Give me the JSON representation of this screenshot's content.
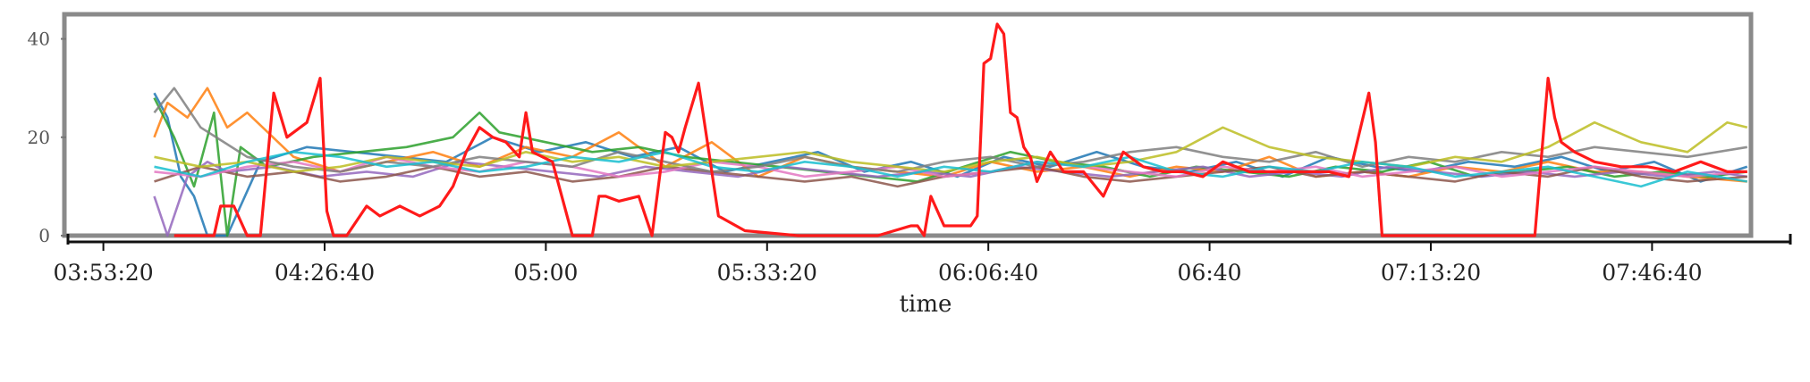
{
  "chart_data": {
    "type": "line",
    "title": "",
    "xlabel": "time",
    "ylabel": "",
    "x_ticks": [
      "03:53:20",
      "04:26:40",
      "05:00",
      "05:33:20",
      "06:06:40",
      "06:40",
      "07:13:20",
      "07:46:40"
    ],
    "y_ticks": [
      0,
      20,
      40
    ],
    "xlim": [
      "03:48:00",
      "08:07:30"
    ],
    "ylim": [
      0,
      45
    ],
    "grid": false,
    "legend": "none",
    "series_colors": [
      "#ff1a1a",
      "#1f77b4",
      "#ff7f0e",
      "#2ca02c",
      "#9467bd",
      "#8c564b",
      "#e377c2",
      "#7f7f7f",
      "#bcbd22",
      "#17becf"
    ],
    "series": [
      {
        "x": [
          "04:04:00",
          "04:08:00",
          "04:10:00",
          "04:11:00",
          "04:13:00",
          "04:15:00",
          "04:17:00",
          "04:19:00",
          "04:21:00",
          "04:24:00",
          "04:26:00",
          "04:27:00",
          "04:28:00",
          "04:30:00",
          "04:33:00",
          "04:35:00",
          "04:38:00",
          "04:41:00",
          "04:44:00",
          "04:46:00",
          "04:48:00",
          "04:50:00",
          "04:52:00",
          "04:54:00",
          "04:56:00",
          "04:57:00",
          "04:58:00",
          "05:01:00",
          "05:04:00",
          "05:07:00",
          "05:08:00",
          "05:09:00",
          "05:11:00",
          "05:14:00",
          "05:16:00",
          "05:18:00",
          "05:19:00",
          "05:20:00",
          "05:21:00",
          "05:23:00",
          "05:26:00",
          "05:30:00",
          "05:38:00",
          "05:50:00",
          "05:55:00",
          "05:56:00",
          "05:57:00",
          "05:58:00",
          "06:00:00",
          "06:02:00",
          "06:04:00",
          "06:05:00",
          "06:06:00",
          "06:07:00",
          "06:08:00",
          "06:09:00",
          "06:10:00",
          "06:11:00",
          "06:12:00",
          "06:13:00",
          "06:14:00",
          "06:16:00",
          "06:18:00",
          "06:21:00",
          "06:24:00",
          "06:27:00",
          "06:30:00",
          "06:33:00",
          "06:36:00",
          "06:39:00",
          "06:42:00",
          "06:46:00",
          "06:50:00",
          "06:54:00",
          "06:58:00",
          "07:01:00",
          "07:04:00",
          "07:05:00",
          "07:06:00",
          "07:09:00",
          "07:15:00",
          "07:25:00",
          "07:29:00",
          "07:31:00",
          "07:32:00",
          "07:33:00",
          "07:35:00",
          "07:38:00",
          "07:42:00",
          "07:46:00",
          "07:50:00",
          "07:54:00",
          "07:58:00",
          "08:01:00"
        ],
        "y": [
          0,
          0,
          0,
          6,
          6,
          0,
          0,
          29,
          20,
          23,
          32,
          5,
          0,
          0,
          6,
          4,
          6,
          4,
          6,
          10,
          17,
          22,
          20,
          19,
          16,
          25,
          17,
          15,
          0,
          0,
          8,
          8,
          7,
          8,
          0,
          21,
          20,
          17,
          22,
          31,
          4,
          1,
          0,
          0,
          2,
          2,
          0,
          8,
          2,
          2,
          2,
          4,
          35,
          36,
          43,
          41,
          25,
          24,
          18,
          16,
          11,
          17,
          13,
          13,
          8,
          17,
          14,
          13,
          13,
          12,
          15,
          13,
          13,
          13,
          13,
          12,
          29,
          19,
          0,
          0,
          0,
          0,
          0,
          32,
          24,
          19,
          17,
          15,
          14,
          14,
          13,
          15,
          13,
          13
        ]
      },
      {
        "x": [
          "04:01:00",
          "04:03:00",
          "04:05:00",
          "04:07:00",
          "04:09:00",
          "04:12:00",
          "04:17:00",
          "04:24:00",
          "04:31:00",
          "04:38:00",
          "04:45:00",
          "04:52:00",
          "04:59:00",
          "05:06:00",
          "05:13:00",
          "05:20:00",
          "05:27:00",
          "05:34:00",
          "05:41:00",
          "05:48:00",
          "05:55:00",
          "06:02:00",
          "06:09:00",
          "06:16:00",
          "06:23:00",
          "06:30:00",
          "06:37:00",
          "06:44:00",
          "06:51:00",
          "06:58:00",
          "07:05:00",
          "07:12:00",
          "07:19:00",
          "07:26:00",
          "07:33:00",
          "07:40:00",
          "07:47:00",
          "07:54:00",
          "08:01:00"
        ],
        "y": [
          29,
          24,
          12,
          8,
          0,
          0,
          15,
          18,
          17,
          16,
          15,
          20,
          17,
          19,
          16,
          18,
          13,
          15,
          17,
          13,
          15,
          12,
          16,
          14,
          17,
          14,
          13,
          15,
          12,
          16,
          14,
          13,
          15,
          14,
          16,
          13,
          15,
          11,
          14
        ]
      },
      {
        "x": [
          "04:01:00",
          "04:03:00",
          "04:06:00",
          "04:09:00",
          "04:12:00",
          "04:15:00",
          "04:22:00",
          "04:29:00",
          "04:36:00",
          "04:43:00",
          "04:50:00",
          "04:57:00",
          "05:04:00",
          "05:11:00",
          "05:18:00",
          "05:25:00",
          "05:32:00",
          "05:39:00",
          "05:46:00",
          "05:53:00",
          "06:00:00",
          "06:07:00",
          "06:14:00",
          "06:21:00",
          "06:28:00",
          "06:35:00",
          "06:42:00",
          "06:49:00",
          "06:56:00",
          "07:03:00",
          "07:10:00",
          "07:17:00",
          "07:24:00",
          "07:31:00",
          "07:38:00",
          "07:45:00",
          "07:52:00",
          "08:01:00"
        ],
        "y": [
          20,
          27,
          24,
          30,
          22,
          25,
          16,
          13,
          15,
          17,
          14,
          18,
          16,
          21,
          14,
          19,
          12,
          16,
          14,
          13,
          12,
          15,
          13,
          14,
          12,
          14,
          13,
          16,
          12,
          13,
          12,
          14,
          13,
          15,
          13,
          13,
          12,
          11
        ]
      },
      {
        "x": [
          "04:01:00",
          "04:04:00",
          "04:07:00",
          "04:10:00",
          "04:12:00",
          "04:14:00",
          "04:18:00",
          "04:25:00",
          "04:32:00",
          "04:39:00",
          "04:46:00",
          "04:50:00",
          "04:53:00",
          "05:00:00",
          "05:07:00",
          "05:14:00",
          "05:21:00",
          "05:28:00",
          "05:35:00",
          "05:42:00",
          "05:49:00",
          "05:56:00",
          "06:03:00",
          "06:10:00",
          "06:17:00",
          "06:24:00",
          "06:31:00",
          "06:38:00",
          "06:45:00",
          "06:52:00",
          "06:59:00",
          "07:06:00",
          "07:13:00",
          "07:20:00",
          "07:27:00",
          "07:34:00",
          "07:41:00",
          "07:48:00",
          "07:55:00",
          "08:01:00"
        ],
        "y": [
          28,
          20,
          10,
          25,
          0,
          18,
          14,
          16,
          17,
          18,
          20,
          25,
          21,
          19,
          17,
          18,
          16,
          15,
          14,
          13,
          12,
          11,
          14,
          17,
          15,
          14,
          12,
          14,
          13,
          12,
          14,
          13,
          15,
          12,
          13,
          14,
          12,
          13,
          12,
          13
        ]
      },
      {
        "x": [
          "04:01:00",
          "04:03:00",
          "04:06:00",
          "04:09:00",
          "04:12:00",
          "04:19:00",
          "04:26:00",
          "04:33:00",
          "04:40:00",
          "04:47:00",
          "04:54:00",
          "05:01:00",
          "05:08:00",
          "05:15:00",
          "05:22:00",
          "05:29:00",
          "05:36:00",
          "05:43:00",
          "05:50:00",
          "05:57:00",
          "06:04:00",
          "06:11:00",
          "06:18:00",
          "06:25:00",
          "06:32:00",
          "06:39:00",
          "06:46:00",
          "06:53:00",
          "07:00:00",
          "07:07:00",
          "07:14:00",
          "07:21:00",
          "07:28:00",
          "07:35:00",
          "07:42:00",
          "07:49:00",
          "07:56:00",
          "08:01:00"
        ],
        "y": [
          8,
          0,
          12,
          15,
          13,
          14,
          12,
          13,
          12,
          15,
          14,
          13,
          12,
          14,
          13,
          12,
          14,
          13,
          12,
          13,
          12,
          14,
          13,
          12,
          13,
          14,
          12,
          13,
          12,
          14,
          13,
          12,
          13,
          12,
          13,
          12,
          13,
          12
        ]
      },
      {
        "x": [
          "04:01:00",
          "04:08:00",
          "04:15:00",
          "04:22:00",
          "04:29:00",
          "04:36:00",
          "04:43:00",
          "04:50:00",
          "04:57:00",
          "05:04:00",
          "05:11:00",
          "05:18:00",
          "05:25:00",
          "05:32:00",
          "05:39:00",
          "05:46:00",
          "05:53:00",
          "06:00:00",
          "06:07:00",
          "06:14:00",
          "06:21:00",
          "06:28:00",
          "06:35:00",
          "06:42:00",
          "06:49:00",
          "06:56:00",
          "07:03:00",
          "07:10:00",
          "07:17:00",
          "07:24:00",
          "07:31:00",
          "07:38:00",
          "07:45:00",
          "07:52:00",
          "08:01:00"
        ],
        "y": [
          11,
          14,
          12,
          13,
          11,
          12,
          14,
          12,
          13,
          11,
          12,
          14,
          13,
          12,
          11,
          12,
          10,
          12,
          13,
          14,
          12,
          11,
          12,
          13,
          14,
          12,
          13,
          12,
          11,
          13,
          12,
          14,
          12,
          11,
          12
        ]
      },
      {
        "x": [
          "04:01:00",
          "04:08:00",
          "04:15:00",
          "04:22:00",
          "04:29:00",
          "04:36:00",
          "04:43:00",
          "04:50:00",
          "04:57:00",
          "05:04:00",
          "05:11:00",
          "05:18:00",
          "05:25:00",
          "05:32:00",
          "05:39:00",
          "05:46:00",
          "05:53:00",
          "06:00:00",
          "06:07:00",
          "06:14:00",
          "06:21:00",
          "06:28:00",
          "06:35:00",
          "06:42:00",
          "06:49:00",
          "06:56:00",
          "07:03:00",
          "07:10:00",
          "07:17:00",
          "07:24:00",
          "07:31:00",
          "07:38:00",
          "07:45:00",
          "07:52:00",
          "08:01:00"
        ],
        "y": [
          13,
          12,
          14,
          15,
          13,
          16,
          14,
          13,
          15,
          14,
          12,
          13,
          15,
          14,
          12,
          13,
          14,
          12,
          13,
          15,
          14,
          13,
          12,
          14,
          13,
          14,
          12,
          13,
          14,
          12,
          13,
          14,
          13,
          12,
          13
        ]
      },
      {
        "x": [
          "04:01:00",
          "04:04:00",
          "04:08:00",
          "04:15:00",
          "04:22:00",
          "04:29:00",
          "04:36:00",
          "04:43:00",
          "04:50:00",
          "04:57:00",
          "05:04:00",
          "05:11:00",
          "05:18:00",
          "05:25:00",
          "05:32:00",
          "05:39:00",
          "05:46:00",
          "05:53:00",
          "06:00:00",
          "06:07:00",
          "06:14:00",
          "06:21:00",
          "06:28:00",
          "06:35:00",
          "06:42:00",
          "06:49:00",
          "06:56:00",
          "07:03:00",
          "07:10:00",
          "07:17:00",
          "07:24:00",
          "07:31:00",
          "07:38:00",
          "07:45:00",
          "07:52:00",
          "08:01:00"
        ],
        "y": [
          25,
          30,
          22,
          16,
          14,
          13,
          15,
          14,
          16,
          15,
          14,
          17,
          15,
          13,
          14,
          16,
          14,
          13,
          15,
          16,
          14,
          15,
          17,
          18,
          16,
          15,
          17,
          14,
          16,
          15,
          17,
          16,
          18,
          17,
          16,
          18
        ]
      },
      {
        "x": [
          "04:01:00",
          "04:08:00",
          "04:15:00",
          "04:22:00",
          "04:29:00",
          "04:36:00",
          "04:43:00",
          "04:50:00",
          "04:57:00",
          "05:04:00",
          "05:11:00",
          "05:18:00",
          "05:25:00",
          "05:32:00",
          "05:39:00",
          "05:46:00",
          "05:53:00",
          "06:00:00",
          "06:07:00",
          "06:14:00",
          "06:21:00",
          "06:28:00",
          "06:35:00",
          "06:42:00",
          "06:49:00",
          "06:56:00",
          "07:03:00",
          "07:10:00",
          "07:17:00",
          "07:24:00",
          "07:31:00",
          "07:38:00",
          "07:45:00",
          "07:52:00",
          "07:58:00",
          "08:01:00"
        ],
        "y": [
          16,
          14,
          15,
          13,
          14,
          16,
          15,
          14,
          17,
          15,
          16,
          14,
          15,
          16,
          17,
          15,
          14,
          13,
          15,
          16,
          14,
          15,
          17,
          22,
          18,
          16,
          15,
          14,
          16,
          15,
          18,
          23,
          19,
          17,
          23,
          22
        ]
      },
      {
        "x": [
          "04:01:00",
          "04:08:00",
          "04:15:00",
          "04:22:00",
          "04:29:00",
          "04:36:00",
          "04:43:00",
          "04:50:00",
          "04:57:00",
          "05:04:00",
          "05:11:00",
          "05:18:00",
          "05:25:00",
          "05:32:00",
          "05:39:00",
          "05:46:00",
          "05:53:00",
          "06:00:00",
          "06:07:00",
          "06:14:00",
          "06:21:00",
          "06:28:00",
          "06:35:00",
          "06:42:00",
          "06:49:00",
          "06:56:00",
          "07:03:00",
          "07:10:00",
          "07:17:00",
          "07:24:00",
          "07:31:00",
          "07:38:00",
          "07:45:00",
          "07:52:00",
          "08:01:00"
        ],
        "y": [
          14,
          12,
          15,
          17,
          16,
          14,
          15,
          13,
          14,
          16,
          15,
          17,
          14,
          13,
          15,
          14,
          12,
          14,
          13,
          15,
          14,
          16,
          13,
          12,
          14,
          13,
          15,
          14,
          12,
          13,
          14,
          12,
          10,
          13,
          11
        ]
      }
    ]
  }
}
